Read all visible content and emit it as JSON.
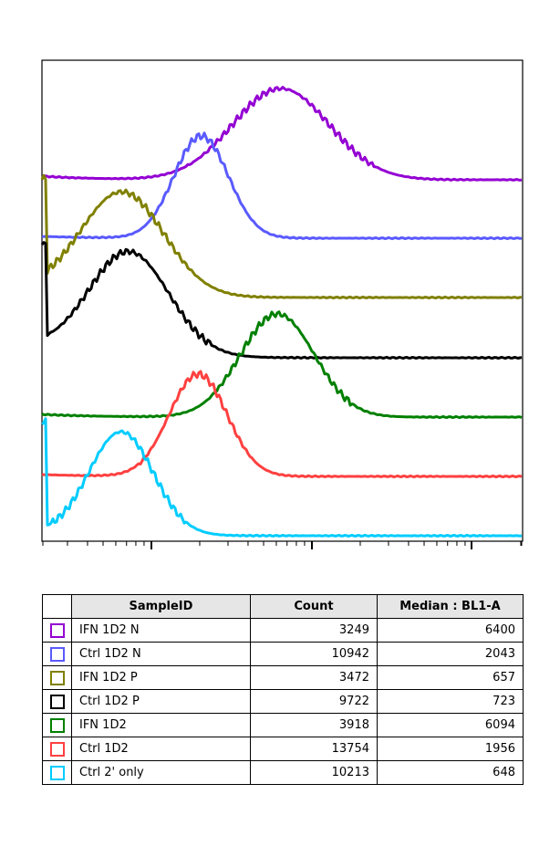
{
  "chart_data": {
    "type": "line",
    "title": "",
    "xlabel": "",
    "ylabel": "",
    "x_scale": "log",
    "grid": false,
    "legend": "table-below",
    "series": [
      {
        "name": "IFN 1D2 N",
        "color": "#9400d3",
        "median": 6400,
        "count": 3249
      },
      {
        "name": "Ctrl 1D2 N",
        "color": "#5a5aff",
        "median": 2043,
        "count": 10942
      },
      {
        "name": "IFN 1D2 P",
        "color": "#808000",
        "median": 657,
        "count": 3472
      },
      {
        "name": "Ctrl 1D2 P",
        "color": "#000000",
        "median": 723,
        "count": 9722
      },
      {
        "name": "IFN 1D2",
        "color": "#008000",
        "median": 6094,
        "count": 3918
      },
      {
        "name": "Ctrl 1D2",
        "color": "#ff4040",
        "median": 1956,
        "count": 13754
      },
      {
        "name": "Ctrl 2' only",
        "color": "#00ccff",
        "median": 648,
        "count": 10213
      }
    ]
  },
  "table": {
    "headers": {
      "sample": "SampleID",
      "count": "Count",
      "median": "Median : BL1-A"
    },
    "rows": [
      {
        "color": "#9400d3",
        "sample": "IFN 1D2 N",
        "count": "3249",
        "median": "6400"
      },
      {
        "color": "#5a5aff",
        "sample": "Ctrl 1D2 N",
        "count": "10942",
        "median": "2043"
      },
      {
        "color": "#808000",
        "sample": "IFN 1D2 P",
        "count": "3472",
        "median": "657"
      },
      {
        "color": "#000000",
        "sample": "Ctrl 1D2 P",
        "count": "9722",
        "median": "723"
      },
      {
        "color": "#008000",
        "sample": "IFN 1D2",
        "count": "3918",
        "median": "6094"
      },
      {
        "color": "#ff4040",
        "sample": "Ctrl 1D2",
        "count": "13754",
        "median": "1956"
      },
      {
        "color": "#00ccff",
        "sample": "Ctrl 2' only",
        "count": "10213",
        "median": "648"
      }
    ]
  }
}
